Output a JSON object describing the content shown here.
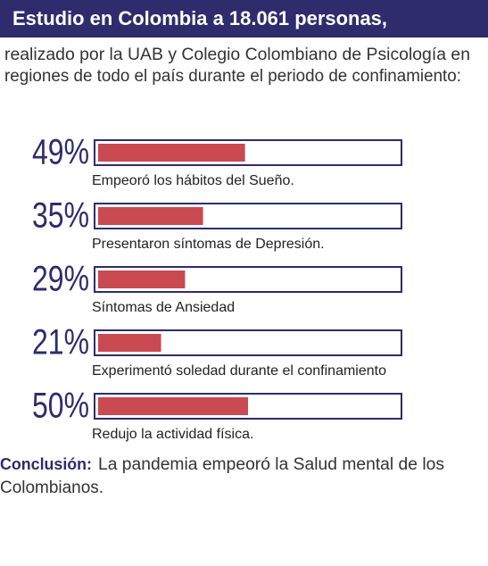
{
  "chart_data": {
    "type": "bar",
    "orientation": "horizontal",
    "title": "Estudio en Colombia a 18.061 personas,",
    "subtitle": [
      "realizado por la UAB y Colegio Colombiano de Psicología en",
      "regiones de todo el país durante el periodo de confinamiento:"
    ],
    "categories": [
      "Empeoró los hábitos del Sueño.",
      "Presentaron síntomas de Depresión.",
      "Síntomas de Ansiedad",
      "Experimentó soledad durante el confinamiento",
      "Redujo la actividad física."
    ],
    "values": [
      49,
      35,
      29,
      21,
      50
    ],
    "value_labels": [
      "49%",
      "35%",
      "29%",
      "21%",
      "50%"
    ],
    "color": "#c94a50",
    "xlim": [
      0,
      100
    ],
    "conclusion": {
      "label": "Conclusión:",
      "lines": [
        "La pandemia empeoró la Salud mental de los",
        "Colombianos."
      ]
    }
  }
}
